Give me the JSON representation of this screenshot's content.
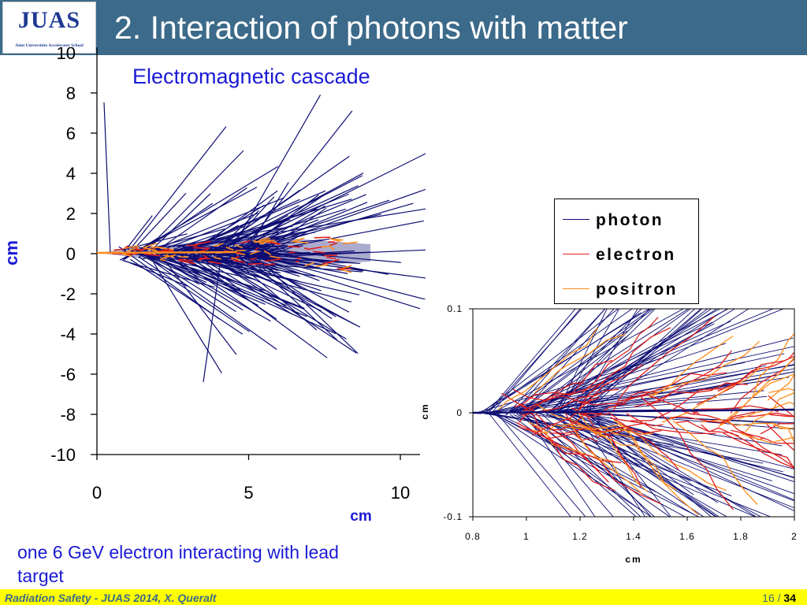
{
  "header": {
    "logo_text": "JUAS",
    "logo_subtitle": "Joint Universities Accelerator School",
    "title": "2. Interaction of photons with matter"
  },
  "slide": {
    "subtitle": "Electromagnetic cascade",
    "caption": "one 6 GeV electron interacting with lead target"
  },
  "colors": {
    "header": "#3c6a8a",
    "footer": "#ffff00",
    "accent_text": "#1a1ad6",
    "photon": "#0d0d73",
    "electron": "#dd1f1f",
    "positron": "#ff8c1a"
  },
  "chart_data": [
    {
      "type": "line",
      "description_label": "main shower plot",
      "xlabel": "cm",
      "ylabel": "cm",
      "xlim": [
        0,
        10
      ],
      "ylim": [
        -10,
        10
      ],
      "x_ticks": [
        0,
        5,
        10
      ],
      "y_ticks": [
        8,
        6,
        4,
        2,
        0,
        -2,
        -4,
        -6,
        -8,
        -10
      ],
      "x_tick_labels": [
        "0",
        "5",
        "10"
      ],
      "y_tick_labels": [
        "8",
        "6",
        "4",
        "2",
        "0",
        "-2",
        "-4",
        "-6",
        "-8",
        "-10"
      ],
      "top_partial_tick_label": "10",
      "grid": false,
      "legend": {
        "placement": "right",
        "entries": [
          "photon",
          "electron",
          "positron"
        ]
      },
      "series": [
        {
          "name": "photon",
          "color": "#0d0d73"
        },
        {
          "name": "electron",
          "color": "#dd1f1f"
        },
        {
          "name": "positron",
          "color": "#ff8c1a"
        }
      ]
    },
    {
      "type": "line",
      "description_label": "zoomed inset",
      "xlabel": "cm",
      "ylabel": "cm",
      "xlim": [
        0.8,
        2
      ],
      "ylim": [
        -0.1,
        0.1
      ],
      "x_ticks": [
        0.8,
        1,
        1.2,
        1.4,
        1.6,
        1.8,
        2
      ],
      "y_ticks": [
        0.1,
        0,
        -0.1
      ],
      "x_tick_labels": [
        "0.8",
        "1",
        "1.2",
        "1.4",
        "1.6",
        "1.8",
        "2"
      ],
      "y_tick_labels": [
        "0.1",
        "0",
        "-0.1"
      ],
      "grid": false
    }
  ],
  "footer": {
    "left_text": "Radiation Safety - JUAS 2014,  X. Queralt",
    "page_current": "16",
    "page_separator": " / ",
    "page_total": "34"
  }
}
